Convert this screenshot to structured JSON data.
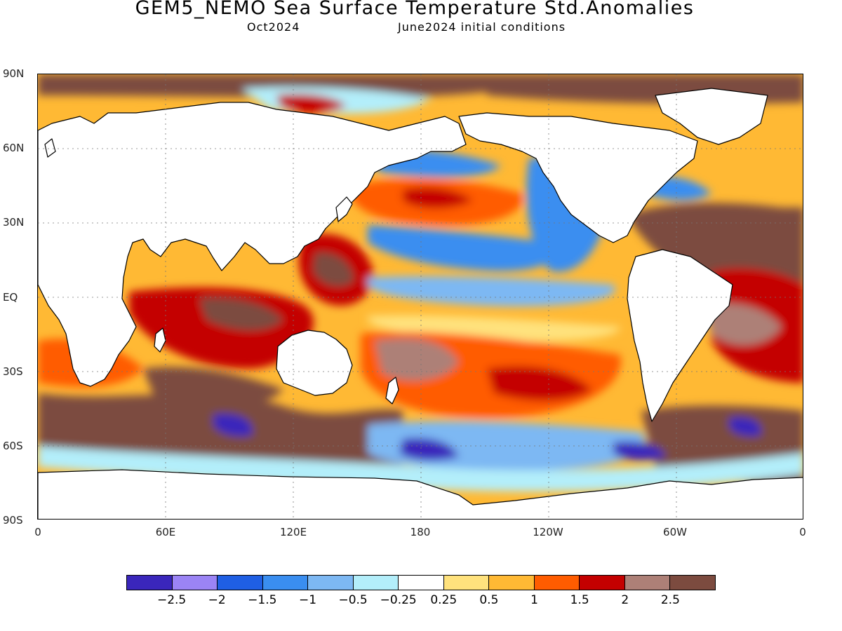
{
  "title": "GEM5_NEMO Sea Surface Temperature Std.Anomalies",
  "subtitle_left": "Oct2024",
  "subtitle_right": "June2024 initial conditions",
  "lat_labels": [
    "90N",
    "60N",
    "30N",
    "EQ",
    "30S",
    "60S",
    "90S"
  ],
  "lon_labels": [
    "0",
    "60E",
    "120E",
    "180",
    "120W",
    "60W",
    "0"
  ],
  "colorbar": {
    "colors": [
      "#3a26bb",
      "#9b84f5",
      "#1f5fe4",
      "#3a8ef0",
      "#7db8f3",
      "#b3eefa",
      "#ffffff",
      "#ffe27d",
      "#ffb934",
      "#ff5c00",
      "#c40000",
      "#ad8077",
      "#7c4b3f"
    ],
    "labels": [
      "−2.5",
      "−2",
      "−1.5",
      "−1",
      "−0.5",
      "−0.25",
      "0.25",
      "0.5",
      "1",
      "1.5",
      "2",
      "2.5"
    ]
  },
  "colors": {
    "land": "#ffffff",
    "warm_base": "#e9a35c",
    "coast": "#000000"
  }
}
